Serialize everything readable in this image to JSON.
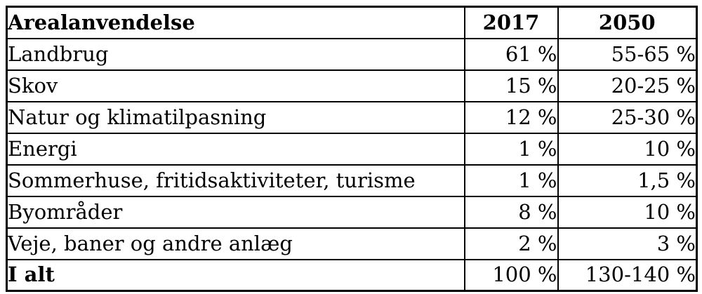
{
  "table": {
    "title_column": "Arealanvendelse",
    "year_columns": [
      "2017",
      "2050"
    ],
    "rows": [
      [
        "Landbrug",
        "61 %",
        "55-65 %"
      ],
      [
        "Skov",
        "15 %",
        "20-25 %"
      ],
      [
        "Natur og klimatilpasning",
        "12 %",
        "25-30 %"
      ],
      [
        "Energi",
        "1 %",
        "10 %"
      ],
      [
        "Sommerhuse, fritidsaktiviteter, turisme",
        "1 %",
        "1,5 %"
      ],
      [
        "Byområder",
        "8 %",
        "10 %"
      ],
      [
        "Veje, baner og andre anlæg",
        "2 %",
        "3 %"
      ]
    ],
    "total_row": [
      "I alt",
      "100 %",
      "130-140 %"
    ],
    "colors": {
      "border": "#000000",
      "text": "#000000",
      "background": "#ffffff"
    }
  }
}
